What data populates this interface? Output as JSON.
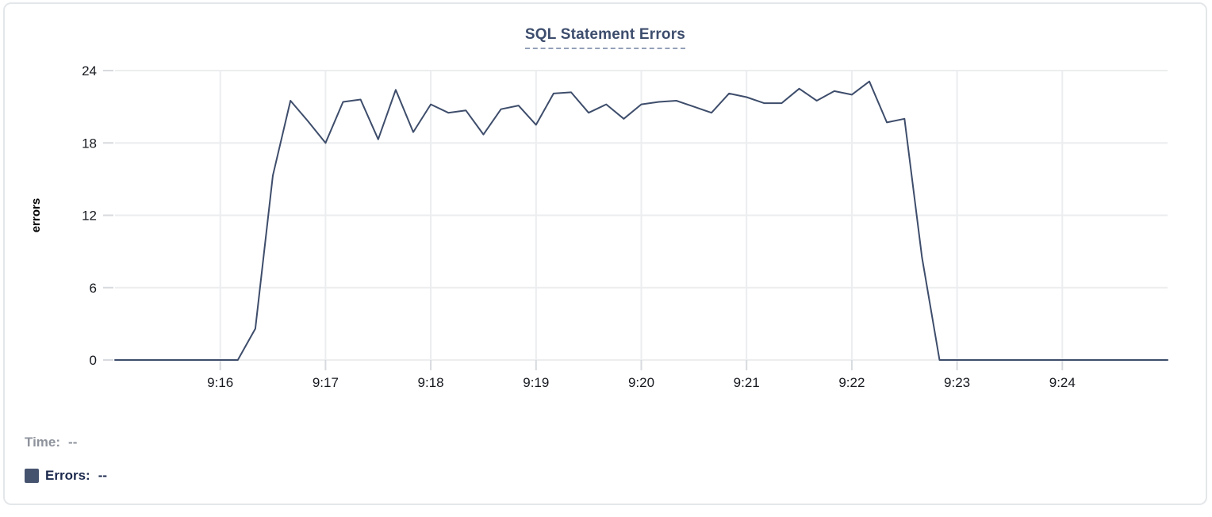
{
  "widget": {
    "title": "SQL Statement Errors"
  },
  "legend": {
    "time_label": "Time:",
    "time_value": "--",
    "errors_label": "Errors:",
    "errors_value": "--",
    "swatch_color": "#46536f"
  },
  "colors": {
    "line": "#3e4d6b",
    "title": "#3d4d6d",
    "grid": "#ebedef",
    "tick": "#d7dade",
    "tick_label": "#16191f",
    "axis_label": "#000000",
    "card_border": "#e4e7ea"
  },
  "chart_data": {
    "type": "line",
    "title": "SQL Statement Errors",
    "xlabel": "",
    "ylabel": "errors",
    "ylim": [
      0,
      24
    ],
    "yticks": [
      0,
      6,
      12,
      18,
      24
    ],
    "xticks": [
      "9:16",
      "9:17",
      "9:18",
      "9:19",
      "9:20",
      "9:21",
      "9:22",
      "9:23",
      "9:24"
    ],
    "x_range": [
      "9:15:00",
      "9:25:00"
    ],
    "grid": true,
    "legend_position": "bottom-left",
    "series": [
      {
        "name": "Errors",
        "color": "#3e4d6b",
        "x": [
          "9:15:00",
          "9:15:10",
          "9:15:20",
          "9:15:30",
          "9:15:40",
          "9:15:50",
          "9:16:00",
          "9:16:10",
          "9:16:20",
          "9:16:30",
          "9:16:40",
          "9:16:50",
          "9:17:00",
          "9:17:10",
          "9:17:20",
          "9:17:30",
          "9:17:40",
          "9:17:50",
          "9:18:00",
          "9:18:10",
          "9:18:20",
          "9:18:30",
          "9:18:40",
          "9:18:50",
          "9:19:00",
          "9:19:10",
          "9:19:20",
          "9:19:30",
          "9:19:40",
          "9:19:50",
          "9:20:00",
          "9:20:10",
          "9:20:20",
          "9:20:30",
          "9:20:40",
          "9:20:50",
          "9:21:00",
          "9:21:10",
          "9:21:20",
          "9:21:30",
          "9:21:40",
          "9:21:50",
          "9:22:00",
          "9:22:10",
          "9:22:20",
          "9:22:30",
          "9:22:40",
          "9:22:50",
          "9:23:00",
          "9:23:10",
          "9:23:20",
          "9:23:30",
          "9:23:40",
          "9:23:50",
          "9:24:00",
          "9:24:10",
          "9:24:20",
          "9:24:30",
          "9:24:40",
          "9:24:50",
          "9:25:00"
        ],
        "values": [
          0,
          0,
          0,
          0,
          0,
          0,
          0,
          0,
          2.6,
          15.3,
          21.5,
          19.8,
          18,
          21.4,
          21.6,
          18.3,
          22.4,
          18.9,
          21.2,
          20.5,
          20.7,
          18.7,
          20.8,
          21.1,
          19.5,
          22.1,
          22.2,
          20.5,
          21.2,
          20,
          21.2,
          21.4,
          21.5,
          21,
          20.5,
          22.1,
          21.8,
          21.3,
          21.3,
          22.5,
          21.5,
          22.3,
          22,
          23.1,
          19.7,
          20,
          8.5,
          0,
          0,
          0,
          0,
          0,
          0,
          0,
          0,
          0,
          0,
          0,
          0,
          0,
          0
        ]
      }
    ]
  }
}
